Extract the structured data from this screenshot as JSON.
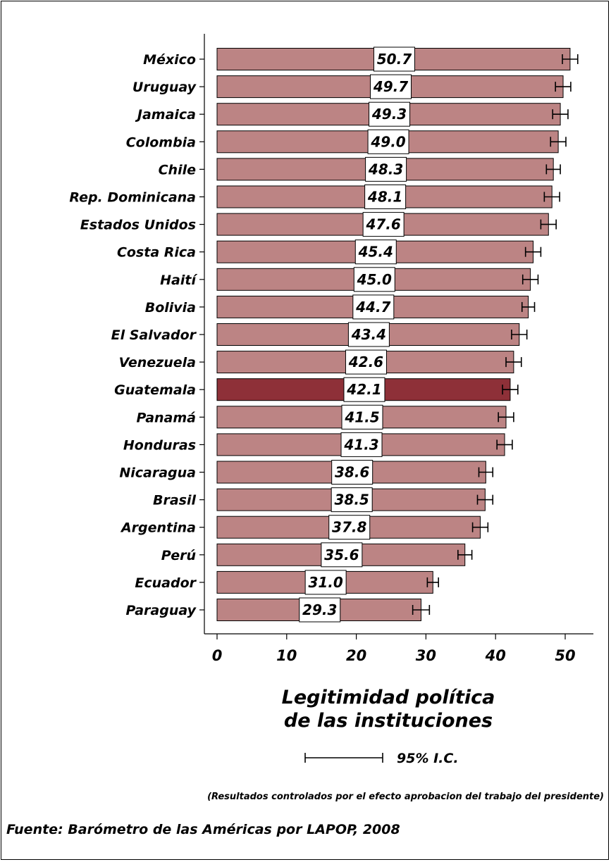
{
  "chart_data": {
    "type": "bar",
    "orientation": "horizontal",
    "categories": [
      "México",
      "Uruguay",
      "Jamaica",
      "Colombia",
      "Chile",
      "Rep. Dominicana",
      "Estados Unidos",
      "Costa Rica",
      "Haití",
      "Bolivia",
      "El Salvador",
      "Venezuela",
      "Guatemala",
      "Panamá",
      "Honduras",
      "Nicaragua",
      "Brasil",
      "Argentina",
      "Perú",
      "Ecuador",
      "Paraguay"
    ],
    "values": [
      50.7,
      49.7,
      49.3,
      49.0,
      48.3,
      48.1,
      47.6,
      45.4,
      45.0,
      44.7,
      43.4,
      42.6,
      42.1,
      41.5,
      41.3,
      38.6,
      38.5,
      37.8,
      35.6,
      31.0,
      29.3
    ],
    "value_labels": [
      "50.7",
      "49.7",
      "49.3",
      "49.0",
      "48.3",
      "48.1",
      "47.6",
      "45.4",
      "45.0",
      "44.7",
      "43.4",
      "42.6",
      "42.1",
      "41.5",
      "41.3",
      "38.6",
      "38.5",
      "37.8",
      "35.6",
      "31.0",
      "29.3"
    ],
    "ci_half_width": [
      1.1,
      1.1,
      1.1,
      1.1,
      1.0,
      1.1,
      1.1,
      1.1,
      1.1,
      0.9,
      1.1,
      1.1,
      1.1,
      1.1,
      1.1,
      1.0,
      1.1,
      1.1,
      1.0,
      0.8,
      1.2
    ],
    "highlight": "Guatemala",
    "colors": {
      "bar": "#bc8484",
      "highlight_bar": "#8e3038",
      "bar_edge": "#000000",
      "label_box": "#ffffff"
    },
    "xlim": [
      0,
      53
    ],
    "xticks": [
      0,
      10,
      20,
      30,
      40,
      50
    ],
    "xtick_labels": [
      "0",
      "10",
      "20",
      "30",
      "40",
      "50"
    ],
    "xlabel_lines": [
      "Legitimidad política",
      "de las instituciones"
    ],
    "grid": false,
    "legend": {
      "label": "95% I.C.",
      "placement": "bottom-center"
    }
  },
  "note": "(Resultados controlados por el efecto  aprobacion del trabajo del presidente)",
  "source": "Fuente: Barómetro de las Américas por LAPOP, 2008"
}
